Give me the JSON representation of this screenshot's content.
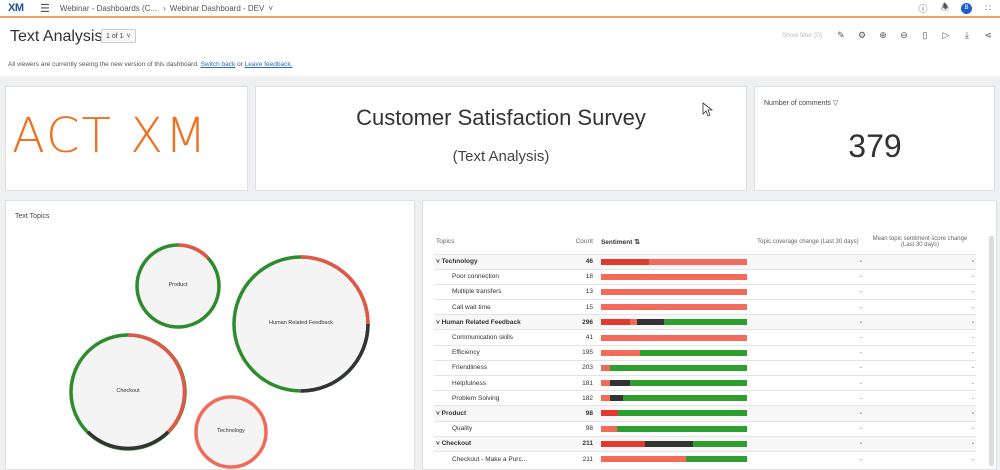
{
  "app": {
    "logo": "XM"
  },
  "breadcrumbs": [
    "Webinar - Dashboards (C...",
    "Webinar Dashboard - DEV"
  ],
  "top_icons": [
    "help-icon",
    "bell-icon",
    "avatar",
    "grid-icon"
  ],
  "avatar_letter": "B",
  "page": {
    "title": "Text Analysis",
    "page_selector": "1 of 1"
  },
  "notice": {
    "text": "All viewers are currently seeing the new version of this dashboard.",
    "link1": "Switch back",
    "or": "or",
    "link2": "Leave feedback."
  },
  "toolbar": {
    "disabled_label": "Show filter (0)",
    "icons": [
      "edit-icon",
      "settings-icon",
      "zoom-in-icon",
      "zoom-out-icon",
      "mobile-icon",
      "play-icon",
      "download-icon",
      "share-icon"
    ]
  },
  "logo_widget": {
    "text": "ACT XM"
  },
  "title_widget": {
    "title": "Customer Satisfaction Survey",
    "subtitle": "(Text Analysis)"
  },
  "comments_widget": {
    "label": "Number of comments",
    "value": "379"
  },
  "text_topics": {
    "title": "Text Topics",
    "bubbles": [
      "Product",
      "Human Related Feedback",
      "Checkout",
      "Technology"
    ]
  },
  "table": {
    "headers": [
      "Topics",
      "Count",
      "Sentiment",
      "Topic coverage change (Last 30 days)",
      "Mean topic sentiment score change (Last 30 days)"
    ],
    "rows": [
      {
        "topic": "Technology",
        "count": "46",
        "group": true,
        "bar": [
          [
            "#e03a2e",
            0.33
          ],
          [
            "#f26a5a",
            0.67
          ]
        ],
        "c1": "-",
        "c2": "-"
      },
      {
        "topic": "Poor connection",
        "count": "18",
        "group": false,
        "bar": [
          [
            "#f26a5a",
            1.0
          ]
        ],
        "c1": "-",
        "c2": "-"
      },
      {
        "topic": "Multiple transfers",
        "count": "13",
        "group": false,
        "bar": [
          [
            "#f26a5a",
            1.0
          ]
        ],
        "c1": "-",
        "c2": "-"
      },
      {
        "topic": "Call wait time",
        "count": "15",
        "group": false,
        "bar": [
          [
            "#f26a5a",
            1.0
          ]
        ],
        "c1": "-",
        "c2": "-"
      },
      {
        "topic": "Human Related Feedback",
        "count": "296",
        "group": true,
        "bar": [
          [
            "#e03a2e",
            0.2
          ],
          [
            "#f26a5a",
            0.05
          ],
          [
            "#333333",
            0.18
          ],
          [
            "#2e9e2e",
            0.57
          ]
        ],
        "c1": "-",
        "c2": "-"
      },
      {
        "topic": "Communication skills",
        "count": "41",
        "group": false,
        "bar": [
          [
            "#f26a5a",
            1.0
          ]
        ],
        "c1": "-",
        "c2": "-"
      },
      {
        "topic": "Efficiency",
        "count": "195",
        "group": false,
        "bar": [
          [
            "#f26a5a",
            0.27
          ],
          [
            "#2e9e2e",
            0.73
          ]
        ],
        "c1": "-",
        "c2": "-"
      },
      {
        "topic": "Friendliness",
        "count": "203",
        "group": false,
        "bar": [
          [
            "#f26a5a",
            0.06
          ],
          [
            "#2e9e2e",
            0.94
          ]
        ],
        "c1": "-",
        "c2": "-"
      },
      {
        "topic": "Helpfulness",
        "count": "181",
        "group": false,
        "bar": [
          [
            "#f26a5a",
            0.06
          ],
          [
            "#333333",
            0.14
          ],
          [
            "#2e9e2e",
            0.8
          ]
        ],
        "c1": "-",
        "c2": "-"
      },
      {
        "topic": "Problem Solving",
        "count": "182",
        "group": false,
        "bar": [
          [
            "#f26a5a",
            0.06
          ],
          [
            "#333333",
            0.09
          ],
          [
            "#2e9e2e",
            0.85
          ]
        ],
        "c1": "-",
        "c2": "-"
      },
      {
        "topic": "Product",
        "count": "98",
        "group": true,
        "bar": [
          [
            "#e03a2e",
            0.12
          ],
          [
            "#2e9e2e",
            0.88
          ]
        ],
        "c1": "-",
        "c2": "-"
      },
      {
        "topic": "Quality",
        "count": "98",
        "group": false,
        "bar": [
          [
            "#f26a5a",
            0.11
          ],
          [
            "#2e9e2e",
            0.89
          ]
        ],
        "c1": "-",
        "c2": "-"
      },
      {
        "topic": "Checkout",
        "count": "211",
        "group": true,
        "bar": [
          [
            "#e03a2e",
            0.3
          ],
          [
            "#333333",
            0.33
          ],
          [
            "#2e9e2e",
            0.37
          ]
        ],
        "c1": "-",
        "c2": "-"
      },
      {
        "topic": "Checkout - Make a Purc...",
        "count": "211",
        "group": false,
        "bar": [
          [
            "#f26a5a",
            0.58
          ],
          [
            "#2e9e2e",
            0.42
          ]
        ],
        "c1": "-",
        "c2": "-"
      }
    ]
  },
  "colors": {
    "accent": "#f07020",
    "positive": "#2e9e2e",
    "negative": "#f26a5a",
    "neutral": "#333333",
    "link": "#2a6bc4"
  }
}
